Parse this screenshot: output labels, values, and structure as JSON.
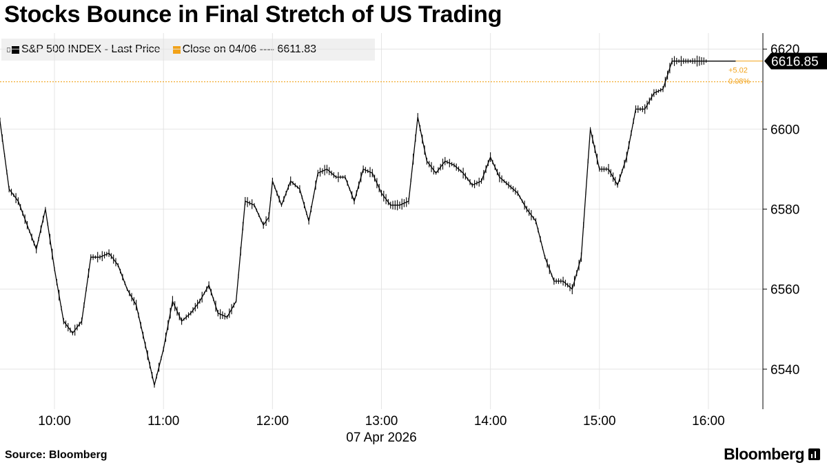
{
  "title": "Stocks Bounce in Final Stretch of US Trading",
  "legend": {
    "series_label": "S&P 500 INDEX - Last Price",
    "close_label": "Close on 04/06 ---- 6611.83"
  },
  "footer": {
    "source": "Source: Bloomberg",
    "brand": "Bloomberg"
  },
  "colors": {
    "price": "#000000",
    "reference": "#f2a218",
    "legend_bg": "#f0f0f0",
    "grid": "#e4e4e4"
  },
  "chart_data": {
    "type": "line",
    "x_unit": "time of day (2026-04-07)",
    "x_date_label": "07 Apr 2026",
    "x_ticks": [
      "10:00",
      "11:00",
      "12:00",
      "13:00",
      "14:00",
      "15:00",
      "16:00"
    ],
    "xlim": [
      "09:30",
      "16:30"
    ],
    "ylim": [
      6530,
      6624
    ],
    "y_ticks": [
      6540,
      6560,
      6580,
      6600,
      6620
    ],
    "grid": true,
    "y_axis_side": "right",
    "legend_position": "top-left",
    "reference_line": {
      "label": "Close on 04/06",
      "value": 6611.83
    },
    "last_value_label": "6616.85",
    "change_abs_label": "+5.02",
    "change_pct_label": "0.08%",
    "series": [
      {
        "name": "S&P 500 INDEX - Last Price",
        "x": [
          "09:30",
          "09:35",
          "09:40",
          "09:45",
          "09:50",
          "09:55",
          "10:00",
          "10:05",
          "10:10",
          "10:15",
          "10:20",
          "10:25",
          "10:30",
          "10:35",
          "10:40",
          "10:45",
          "10:50",
          "10:55",
          "11:00",
          "11:05",
          "11:10",
          "11:15",
          "11:20",
          "11:25",
          "11:30",
          "11:35",
          "11:40",
          "11:45",
          "11:50",
          "11:55",
          "11:58",
          "12:00",
          "12:05",
          "12:10",
          "12:15",
          "12:20",
          "12:25",
          "12:30",
          "12:35",
          "12:40",
          "12:45",
          "12:50",
          "12:55",
          "13:00",
          "13:05",
          "13:10",
          "13:15",
          "13:20",
          "13:25",
          "13:30",
          "13:35",
          "13:40",
          "13:45",
          "13:50",
          "13:55",
          "14:00",
          "14:05",
          "14:10",
          "14:15",
          "14:20",
          "14:25",
          "14:30",
          "14:35",
          "14:40",
          "14:45",
          "14:50",
          "14:55",
          "15:00",
          "15:05",
          "15:10",
          "15:15",
          "15:20",
          "15:25",
          "15:30",
          "15:35",
          "15:40",
          "15:45",
          "15:50",
          "15:55",
          "16:00",
          "16:05",
          "16:15"
        ],
        "values": [
          6602,
          6585,
          6582,
          6576,
          6570,
          6580,
          6565,
          6552,
          6549,
          6552,
          6568,
          6568,
          6569,
          6566,
          6560,
          6556,
          6546,
          6536,
          6545,
          6557,
          6552,
          6554,
          6557,
          6561,
          6554,
          6553,
          6557,
          6582,
          6581,
          6576,
          6578,
          6587,
          6581,
          6587,
          6585,
          6577,
          6589,
          6590,
          6588,
          6588,
          6582,
          6590,
          6589,
          6584,
          6581,
          6581,
          6582,
          6603,
          6592,
          6589,
          6592,
          6591,
          6589,
          6586,
          6587,
          6593,
          6588,
          6586,
          6584,
          6580,
          6577,
          6568,
          6562,
          6562,
          6560,
          6568,
          6600,
          6590,
          6590,
          6586,
          6593,
          6605,
          6605,
          6609,
          6610,
          6617,
          6617,
          6617,
          6617,
          6617,
          6617,
          6617
        ]
      }
    ]
  }
}
